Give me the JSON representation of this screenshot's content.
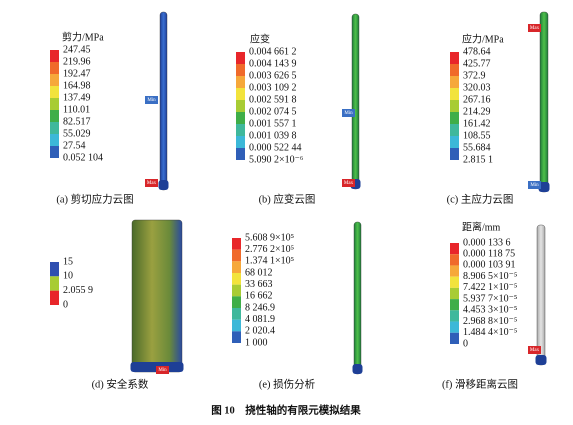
{
  "figure_caption": "图 10　挠性轴的有限元模拟结果",
  "panels": [
    {
      "caption": "(a) 剪切应力云图",
      "legend_title": "剪力/MPa",
      "legend_labels": [
        "247.45",
        "219.96",
        "192.47",
        "164.98",
        "137.49",
        "110.01",
        "82.517",
        "55.029",
        "27.54",
        "0.052 104"
      ],
      "legend_colors": [
        "#e8262a",
        "#f06a2a",
        "#f6a83a",
        "#f2e33c",
        "#a8cc34",
        "#3fae48",
        "#3fb89c",
        "#3cb8d8",
        "#2f5fb8"
      ],
      "tags": [
        "Min",
        "Max"
      ]
    },
    {
      "caption": "(b) 应变云图",
      "legend_title": "应变",
      "legend_labels": [
        "0.004 661 2",
        "0.004 143 9",
        "0.003 626 5",
        "0.003 109 2",
        "0.002 591 8",
        "0.002 074 5",
        "0.001 557 1",
        "0.001 039 8",
        "0.000 522 44",
        "5.090 2×10⁻⁶"
      ],
      "legend_colors": [
        "#e8262a",
        "#f06a2a",
        "#f6a83a",
        "#f2e33c",
        "#a8cc34",
        "#3fae48",
        "#3fb89c",
        "#3cb8d8",
        "#2f5fb8"
      ],
      "tags": [
        "Min",
        "Max"
      ]
    },
    {
      "caption": "(c) 主应力云图",
      "legend_title": "应力/MPa",
      "legend_labels": [
        "478.64",
        "425.77",
        "372.9",
        "320.03",
        "267.16",
        "214.29",
        "161.42",
        "108.55",
        "55.684",
        "2.815 1"
      ],
      "legend_colors": [
        "#e8262a",
        "#f06a2a",
        "#f6a83a",
        "#f2e33c",
        "#a8cc34",
        "#3fae48",
        "#3fb89c",
        "#3cb8d8",
        "#2f5fb8"
      ],
      "tags": [
        "Max",
        "Min"
      ]
    },
    {
      "caption": "(d) 安全系数",
      "legend_labels": [
        "15",
        "10",
        "2.055 9",
        "0"
      ],
      "legend_colors": [
        "#2f4fb0",
        "#a8cc34",
        "#e8262a"
      ],
      "tags": [
        "Min"
      ]
    },
    {
      "caption": "(e) 损伤分析",
      "legend_labels": [
        "5.608 9×10⁵",
        "2.776 2×10⁵",
        "1.374 1×10⁵",
        "68 012",
        "33 663",
        "16 662",
        "8 246.9",
        "4 081.9",
        "2 020.4",
        "1 000"
      ],
      "legend_colors": [
        "#e8262a",
        "#f06a2a",
        "#f6a83a",
        "#f2e33c",
        "#a8cc34",
        "#3fae48",
        "#3fb89c",
        "#3cb8d8",
        "#2f5fb8"
      ],
      "tags": []
    },
    {
      "caption": "(f) 滑移距离云图",
      "legend_title": "距离/mm",
      "legend_labels": [
        "0.000 133 6",
        "0.000 118 75",
        "0.000 103 91",
        "8.906 5×10⁻⁵",
        "7.422 1×10⁻⁵",
        "5.937 7×10⁻⁵",
        "4.453 3×10⁻⁵",
        "2.968 8×10⁻⁵",
        "1.484 4×10⁻⁵",
        "0"
      ],
      "legend_colors": [
        "#e8262a",
        "#f06a2a",
        "#f6a83a",
        "#f2e33c",
        "#a8cc34",
        "#3fae48",
        "#3fb89c",
        "#3cb8d8",
        "#2f5fb8"
      ],
      "tags": [
        "Max"
      ]
    }
  ]
}
